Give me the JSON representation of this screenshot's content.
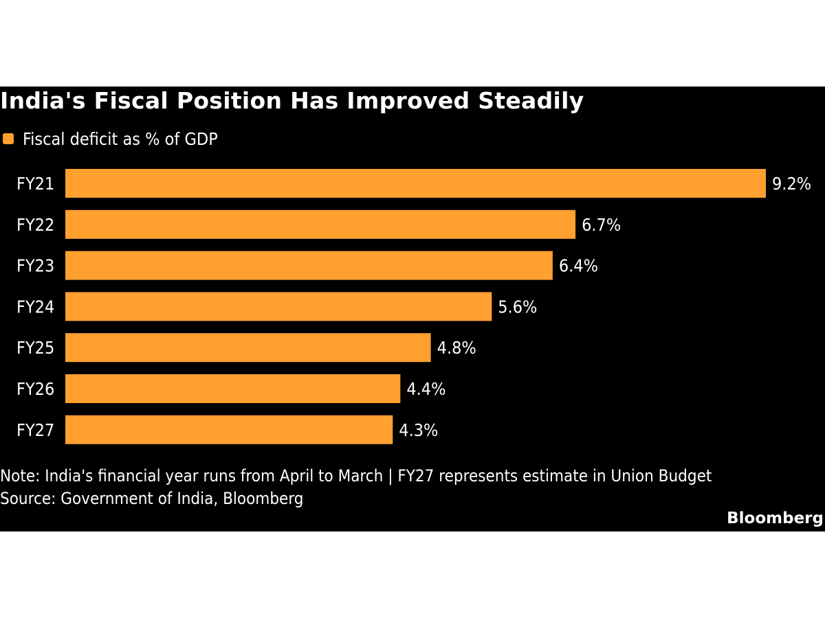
{
  "chart_data": {
    "type": "bar",
    "orientation": "horizontal",
    "title": "India's Fiscal Position Has Improved Steadily",
    "legend": {
      "placement": "top-left",
      "entries": [
        "Fiscal deficit as % of GDP"
      ]
    },
    "categories": [
      "FY21",
      "FY22",
      "FY23",
      "FY24",
      "FY25",
      "FY26",
      "FY27"
    ],
    "series": [
      {
        "name": "Fiscal deficit as % of GDP",
        "values": [
          9.2,
          6.7,
          6.4,
          5.6,
          4.8,
          4.4,
          4.3
        ],
        "labels": [
          "9.2%",
          "6.7%",
          "6.4%",
          "5.6%",
          "4.8%",
          "4.4%",
          "4.3%"
        ],
        "color": "#ffa02f"
      }
    ],
    "xlim": [
      0,
      9.2
    ],
    "grid": false,
    "note": "Note: India's financial year runs from April to March | FY27 represents estimate in Union Budget",
    "source": "Source: Government of India, Bloomberg"
  },
  "branding": {
    "logo": "Bloomberg"
  },
  "colors": {
    "background": "#000000",
    "bar": "#ffa02f",
    "text": "#ffffff",
    "page": "#ffffff"
  }
}
